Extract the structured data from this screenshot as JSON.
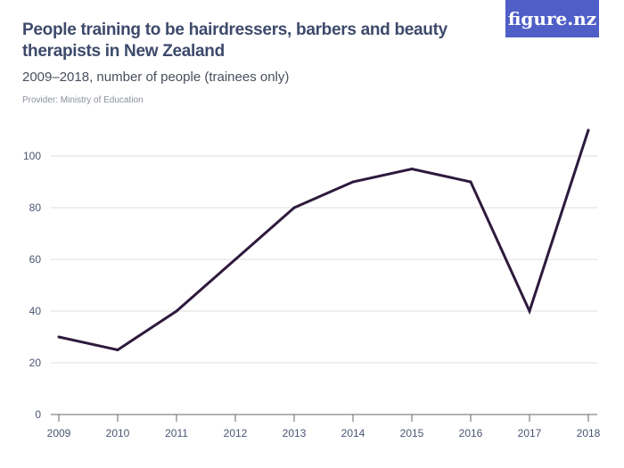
{
  "logo": "figure.nz",
  "chart_data": {
    "type": "line",
    "title": "People training to be hairdressers, barbers and beauty therapists in New Zealand",
    "subtitle": "2009–2018, number of people (trainees only)",
    "provider": "Provider: Ministry of Education",
    "x": [
      "2009",
      "2010",
      "2011",
      "2012",
      "2013",
      "2014",
      "2015",
      "2016",
      "2017",
      "2018"
    ],
    "values": [
      30,
      25,
      40,
      60,
      80,
      90,
      95,
      90,
      40,
      110
    ],
    "ylim": [
      0,
      110
    ],
    "yticks": [
      0,
      20,
      40,
      60,
      80,
      100
    ],
    "grid": true,
    "line_color": "#2e1a3d"
  }
}
